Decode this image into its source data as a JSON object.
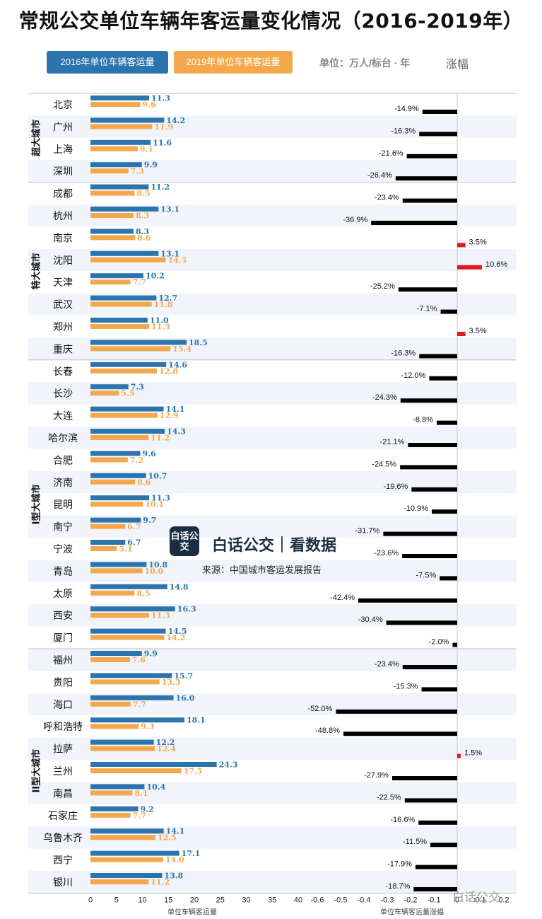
{
  "title": "常规公交单位车辆年客运量变化情况（2016-2019年）",
  "legend": {
    "s2016": "2016年单位车辆客运量",
    "s2019": "2019年单位车辆客运量",
    "unit": "单位：万人/标台 · 年",
    "rise": "涨幅"
  },
  "watermark": {
    "logo": "白话公交",
    "name": "白话公交｜看数据",
    "source": "来源：中国城市客运发展报告"
  },
  "footer_watermark": "白话公交",
  "colors": {
    "s2016": "#2c74ae",
    "s2019": "#f4a84e",
    "neg": "#000000",
    "pos": "#e8141c"
  },
  "chart_data": {
    "type": "bar",
    "groups": [
      {
        "name": "超大城市",
        "cities": [
          {
            "city": "北京",
            "v2016": 11.3,
            "v2019": 9.6,
            "change": "-14.9%",
            "change_value": -0.149
          },
          {
            "city": "广州",
            "v2016": 14.2,
            "v2019": 11.9,
            "change": "-16.3%",
            "change_value": -0.163
          },
          {
            "city": "上海",
            "v2016": 11.6,
            "v2019": 9.1,
            "change": "-21.6%",
            "change_value": -0.216
          },
          {
            "city": "深圳",
            "v2016": 9.9,
            "v2019": 7.3,
            "change": "-26.4%",
            "change_value": -0.264
          }
        ]
      },
      {
        "name": "特大城市",
        "cities": [
          {
            "city": "成都",
            "v2016": 11.2,
            "v2019": 8.5,
            "change": "-23.4%",
            "change_value": -0.234
          },
          {
            "city": "杭州",
            "v2016": 13.1,
            "v2019": 8.3,
            "change": "-36.9%",
            "change_value": -0.369
          },
          {
            "city": "南京",
            "v2016": 8.3,
            "v2019": 8.6,
            "change": "3.5%",
            "change_value": 0.035
          },
          {
            "city": "沈阳",
            "v2016": 13.1,
            "v2019": 14.5,
            "change": "10.6%",
            "change_value": 0.106
          },
          {
            "city": "天津",
            "v2016": 10.2,
            "v2019": 7.7,
            "change": "-25.2%",
            "change_value": -0.252
          },
          {
            "city": "武汉",
            "v2016": 12.7,
            "v2019": 11.8,
            "change": "-7.1%",
            "change_value": -0.071
          },
          {
            "city": "郑州",
            "v2016": 11.0,
            "v2019": 11.3,
            "change": "3.5%",
            "change_value": 0.035
          },
          {
            "city": "重庆",
            "v2016": 18.5,
            "v2019": 15.4,
            "change": "-16.3%",
            "change_value": -0.163
          }
        ]
      },
      {
        "name": "I型大城市",
        "cities": [
          {
            "city": "长春",
            "v2016": 14.6,
            "v2019": 12.8,
            "change": "-12.0%",
            "change_value": -0.12
          },
          {
            "city": "长沙",
            "v2016": 7.3,
            "v2019": 5.5,
            "change": "-24.3%",
            "change_value": -0.243
          },
          {
            "city": "大连",
            "v2016": 14.1,
            "v2019": 12.9,
            "change": "-8.8%",
            "change_value": -0.088
          },
          {
            "city": "哈尔滨",
            "v2016": 14.3,
            "v2019": 11.2,
            "change": "-21.1%",
            "change_value": -0.211
          },
          {
            "city": "合肥",
            "v2016": 9.6,
            "v2019": 7.2,
            "change": "-24.5%",
            "change_value": -0.245
          },
          {
            "city": "济南",
            "v2016": 10.7,
            "v2019": 8.6,
            "change": "-19.6%",
            "change_value": -0.196
          },
          {
            "city": "昆明",
            "v2016": 11.3,
            "v2019": 10.1,
            "change": "-10.9%",
            "change_value": -0.109
          },
          {
            "city": "南宁",
            "v2016": 9.7,
            "v2019": 6.7,
            "change": "-31.7%",
            "change_value": -0.317
          },
          {
            "city": "宁波",
            "v2016": 6.7,
            "v2019": 5.1,
            "change": "-23.6%",
            "change_value": -0.236
          },
          {
            "city": "青岛",
            "v2016": 10.8,
            "v2019": 10.0,
            "change": "-7.5%",
            "change_value": -0.075
          },
          {
            "city": "太原",
            "v2016": 14.8,
            "v2019": 8.5,
            "change": "-42.4%",
            "change_value": -0.424
          },
          {
            "city": "西安",
            "v2016": 16.3,
            "v2019": 11.3,
            "change": "-30.4%",
            "change_value": -0.304
          },
          {
            "city": "厦门",
            "v2016": 14.5,
            "v2019": 14.2,
            "change": "-2.0%",
            "change_value": -0.02
          }
        ]
      },
      {
        "name": "II型大城市",
        "cities": [
          {
            "city": "福州",
            "v2016": 9.9,
            "v2019": 7.6,
            "change": "-23.4%",
            "change_value": -0.234
          },
          {
            "city": "贵阳",
            "v2016": 15.7,
            "v2019": 13.3,
            "change": "-15.3%",
            "change_value": -0.153
          },
          {
            "city": "海口",
            "v2016": 16.0,
            "v2019": 7.7,
            "change": "-52.0%",
            "change_value": -0.52
          },
          {
            "city": "呼和浩特",
            "v2016": 18.1,
            "v2019": 9.3,
            "change": "-48.8%",
            "change_value": -0.488
          },
          {
            "city": "拉萨",
            "v2016": 12.2,
            "v2019": 12.4,
            "change": "1.5%",
            "change_value": 0.015
          },
          {
            "city": "兰州",
            "v2016": 24.3,
            "v2019": 17.5,
            "change": "-27.9%",
            "change_value": -0.279
          },
          {
            "city": "南昌",
            "v2016": 10.4,
            "v2019": 8.1,
            "change": "-22.5%",
            "change_value": -0.225
          },
          {
            "city": "石家庄",
            "v2016": 9.2,
            "v2019": 7.7,
            "change": "-16.6%",
            "change_value": -0.166
          },
          {
            "city": "乌鲁木齐",
            "v2016": 14.1,
            "v2019": 12.5,
            "change": "-11.5%",
            "change_value": -0.115
          },
          {
            "city": "西宁",
            "v2016": 17.1,
            "v2019": 14.0,
            "change": "-17.9%",
            "change_value": -0.179
          },
          {
            "city": "银川",
            "v2016": 13.8,
            "v2019": 11.2,
            "change": "-18.7%",
            "change_value": -0.187
          }
        ]
      }
    ],
    "left_axis": {
      "label": "单位车辆客运量",
      "range": [
        0,
        40
      ],
      "ticks": [
        "0",
        "5",
        "10",
        "15",
        "20",
        "25",
        "30",
        "35",
        "40"
      ]
    },
    "right_axis": {
      "label": "单位车辆客运量涨幅",
      "range": [
        -0.6,
        0.2
      ],
      "ticks": [
        "-0.6",
        "-0.5",
        "-0.4",
        "-0.3",
        "-0.2",
        "-0.1",
        "0",
        "0.1",
        "0.2"
      ]
    }
  }
}
